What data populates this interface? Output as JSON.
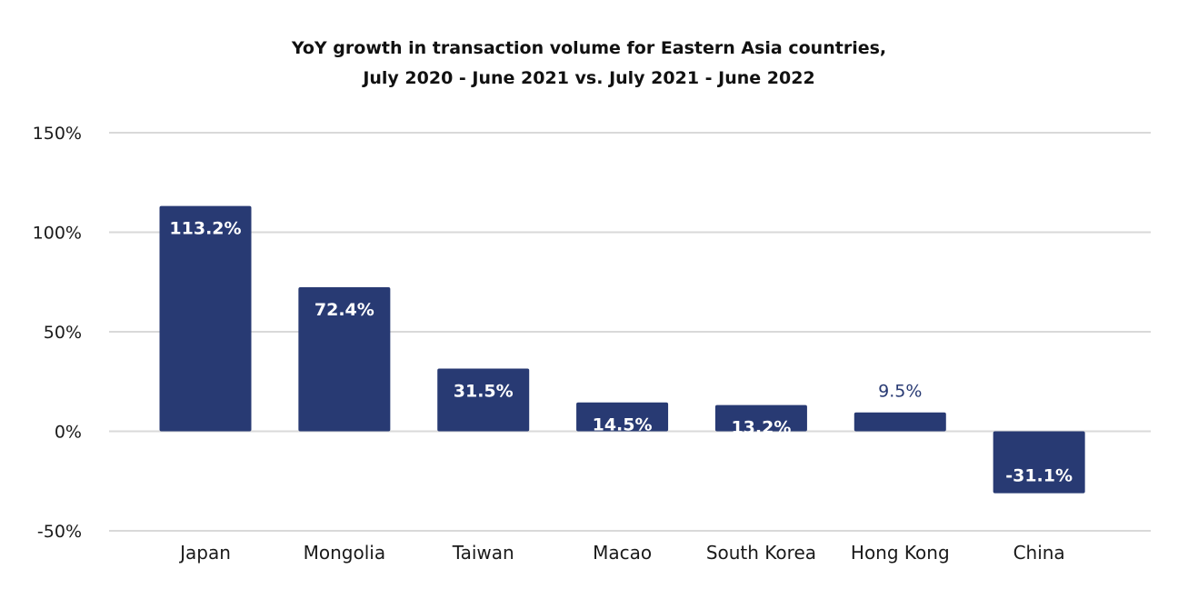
{
  "chart_data": {
    "type": "bar",
    "title_line1": "YoY growth in transaction volume for Eastern Asia countries,",
    "title_line2": "July 2020 - June 2021 vs. July 2021 - June 2022",
    "categories": [
      "Japan",
      "Mongolia",
      "Taiwan",
      "Macao",
      "South Korea",
      "Hong Kong",
      "China"
    ],
    "values": [
      113.2,
      72.4,
      31.5,
      14.5,
      13.2,
      9.5,
      -31.1
    ],
    "data_labels": [
      "113.2%",
      "72.4%",
      "31.5%",
      "14.5%",
      "13.2%",
      "9.5%",
      "-31.1%"
    ],
    "y_ticks": [
      150,
      100,
      50,
      0,
      -50
    ],
    "y_tick_labels": [
      "150%",
      "100%",
      "50%",
      "0%",
      "-50%"
    ],
    "ylim": [
      -50,
      150
    ],
    "grid": true,
    "legend": "none",
    "bar_color": "#283A73",
    "label_inside_color": "#ffffff",
    "label_outside_color": "#283A73",
    "grid_color": "#d9d9d9",
    "text_color": "#1a1a1a"
  }
}
